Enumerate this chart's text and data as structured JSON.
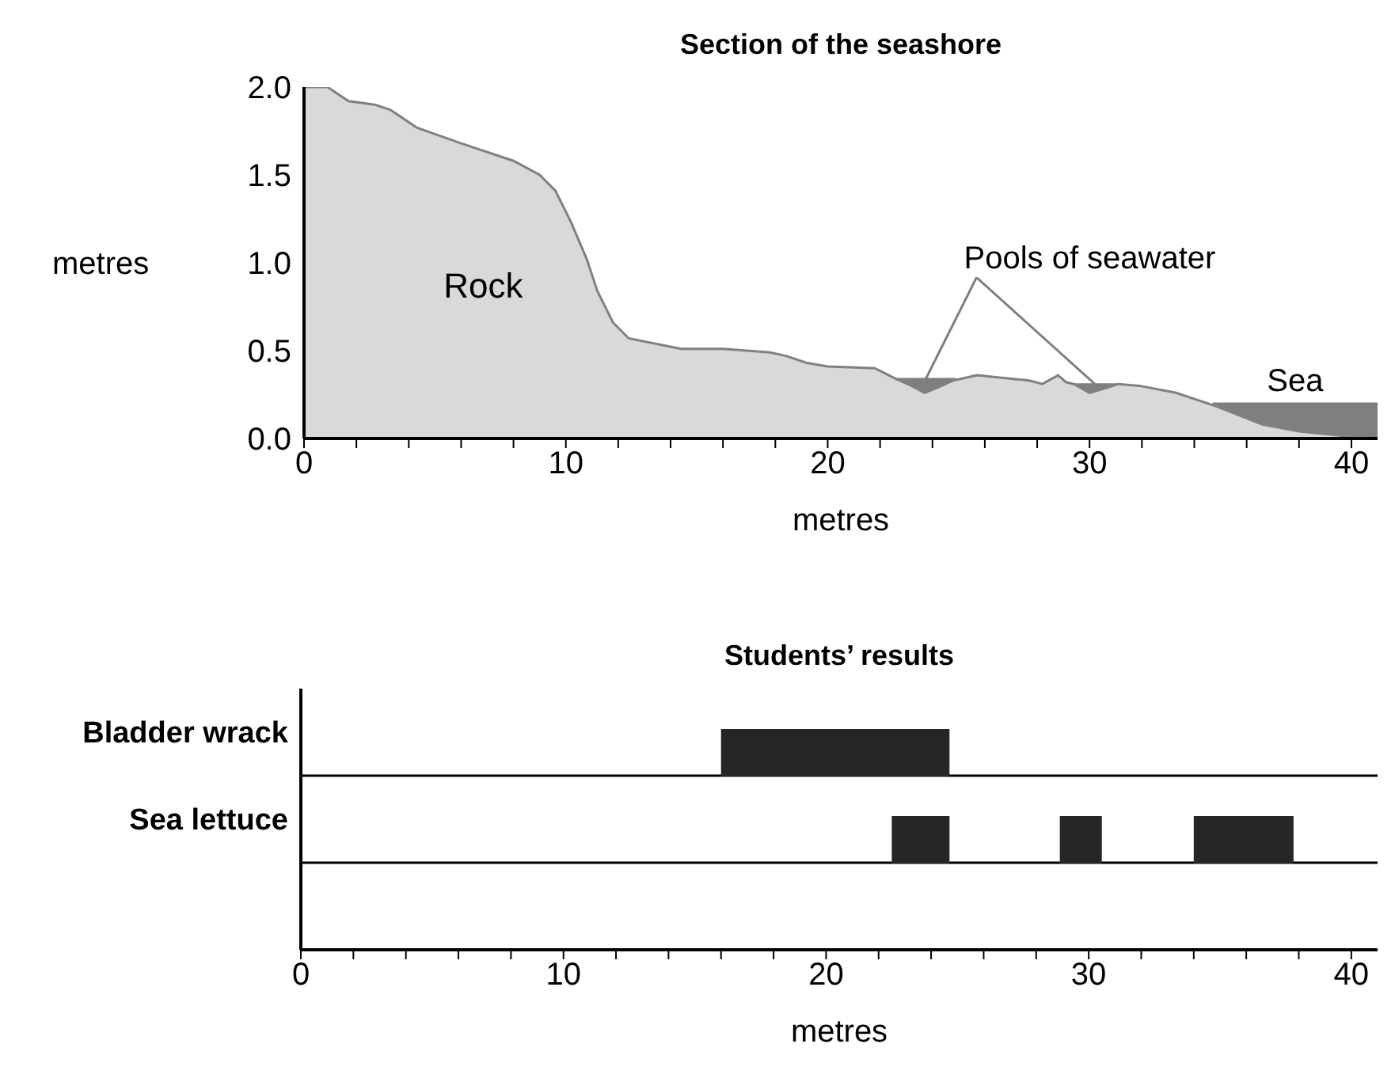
{
  "chart_data": [
    {
      "type": "area",
      "title": "Section of the seashore",
      "xlabel": "metres",
      "ylabel": "metres",
      "xlim": [
        0,
        41
      ],
      "ylim": [
        0,
        2
      ],
      "xticks": [
        0,
        {
          "value": 2,
          "label": null
        },
        {
          "value": 4,
          "label": null
        },
        {
          "value": 6,
          "label": null
        },
        {
          "value": 8,
          "label": null
        },
        10,
        {
          "value": 12,
          "label": null
        },
        {
          "value": 14,
          "label": null
        },
        {
          "value": 16,
          "label": null
        },
        {
          "value": 18,
          "label": null
        },
        20,
        {
          "value": 22,
          "label": null
        },
        {
          "value": 24,
          "label": null
        },
        {
          "value": 26,
          "label": null
        },
        {
          "value": 28,
          "label": null
        },
        30,
        {
          "value": 32,
          "label": null
        },
        {
          "value": 34,
          "label": null
        },
        {
          "value": 36,
          "label": null
        },
        {
          "value": 38,
          "label": null
        },
        40
      ],
      "yticks": [
        {
          "value": 0,
          "label": "0.0"
        },
        {
          "value": 0.5,
          "label": "0.5"
        },
        {
          "value": 1,
          "label": "1.0"
        },
        {
          "value": 1.5,
          "label": "1.5"
        },
        {
          "value": 2,
          "label": "2.0"
        }
      ],
      "series": [
        {
          "name": "Pools of seawater",
          "type": "area",
          "color": "#7f7f7f",
          "x": [
            22.6,
            24.9,
            27,
            29.2,
            31.2
          ],
          "values": [
            0.34,
            0.34,
            null,
            0.31,
            0.31
          ]
        },
        {
          "name": "Sea",
          "type": "area",
          "color": "#7f7f7f",
          "x": [
            34.7,
            41
          ],
          "values": [
            0.2,
            0.2
          ]
        },
        {
          "name": "Rock",
          "type": "area",
          "color": "#d9d9d9",
          "x": [
            0,
            0.9,
            1.7,
            2.7,
            3.3,
            4.3,
            6.0,
            8.0,
            9.0,
            9.6,
            10.2,
            10.8,
            11.2,
            11.8,
            12.4,
            14.4,
            16.0,
            17.8,
            18.4,
            19.2,
            20.0,
            21.8,
            22.6,
            23.2,
            23.7,
            24.2,
            24.8,
            25.7,
            27.7,
            28.2,
            28.8,
            29.1,
            29.4,
            30.0,
            30.7,
            31.1,
            31.9,
            33.3,
            34.1,
            34.9,
            36.6,
            38.0,
            40.0,
            41
          ],
          "values": [
            2.0,
            2.0,
            1.92,
            1.9,
            1.87,
            1.77,
            1.68,
            1.58,
            1.5,
            1.41,
            1.23,
            1.02,
            0.84,
            0.66,
            0.57,
            0.51,
            0.51,
            0.49,
            0.47,
            0.43,
            0.41,
            0.4,
            0.34,
            0.3,
            0.26,
            0.29,
            0.33,
            0.36,
            0.33,
            0.31,
            0.36,
            0.32,
            0.31,
            0.26,
            0.29,
            0.31,
            0.3,
            0.26,
            0.22,
            0.18,
            0.08,
            0.04,
            0.01,
            0
          ]
        }
      ]
    },
    {
      "type": "bar",
      "orientation": "horizontal",
      "title": "Students’ results",
      "xlabel": "metres",
      "categories": [
        "Bladder wrack",
        "Sea lettuce",
        null
      ],
      "xlim": [
        0,
        41
      ],
      "grid": "y",
      "xticks": [
        0,
        {
          "value": 2,
          "label": null
        },
        {
          "value": 4,
          "label": null
        },
        {
          "value": 6,
          "label": null
        },
        {
          "value": 8,
          "label": null
        },
        10,
        {
          "value": 12,
          "label": null
        },
        {
          "value": 14,
          "label": null
        },
        {
          "value": 16,
          "label": null
        },
        {
          "value": 18,
          "label": null
        },
        20,
        {
          "value": 22,
          "label": null
        },
        {
          "value": 24,
          "label": null
        },
        {
          "value": 26,
          "label": null
        },
        {
          "value": 28,
          "label": null
        },
        30,
        {
          "value": 32,
          "label": null
        },
        {
          "value": 34,
          "label": null
        },
        {
          "value": 36,
          "label": null
        },
        {
          "value": 38,
          "label": null
        },
        40
      ],
      "series": [
        {
          "color": "#262626",
          "base": [
            16.0,
            22.5,
            null
          ],
          "values": [
            8.7,
            2.2,
            null
          ]
        },
        {
          "color": "#262626",
          "base": [
            null,
            28.9,
            null
          ],
          "values": [
            null,
            1.6,
            null
          ]
        },
        {
          "color": "#262626",
          "base": [
            null,
            34.0,
            null
          ],
          "values": [
            null,
            3.8,
            null
          ]
        }
      ]
    }
  ]
}
